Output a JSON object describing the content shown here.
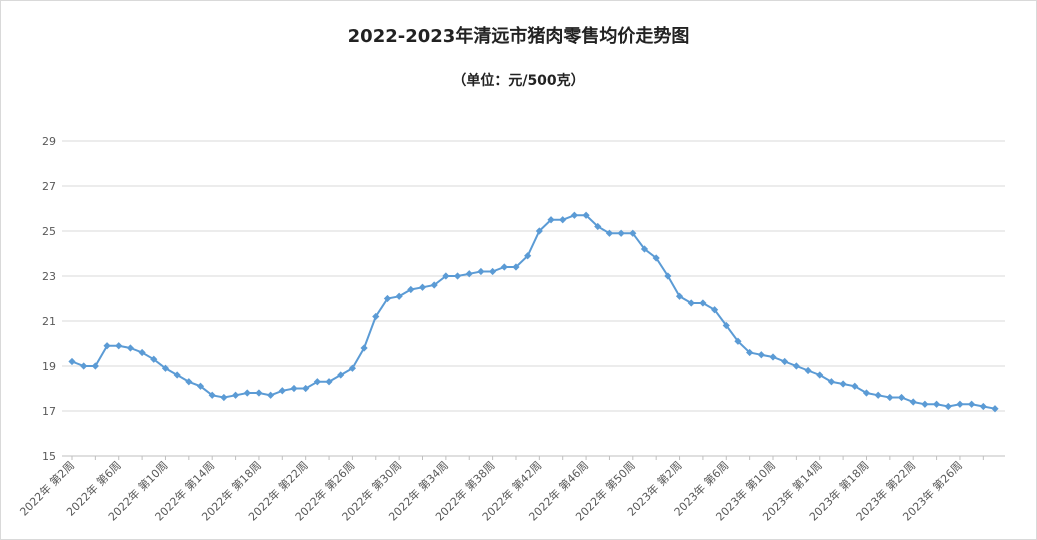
{
  "chart_data": {
    "type": "line",
    "title": "2022-2023年清远市猪肉零售均价走势图",
    "subtitle": "（单位：元/500克）",
    "xlabel": "",
    "ylabel": "",
    "ylim": [
      15,
      29
    ],
    "yticks": [
      15,
      17,
      19,
      21,
      23,
      25,
      27,
      29
    ],
    "grid": true,
    "legend": "none",
    "line_color": "#5b9bd5",
    "x_tick_labels": [
      "2022年 第2周",
      "2022年 第6周",
      "2022年 第10周",
      "2022年 第14周",
      "2022年 第18周",
      "2022年 第22周",
      "2022年 第26周",
      "2022年 第30周",
      "2022年 第34周",
      "2022年 第38周",
      "2022年 第42周",
      "2022年 第46周",
      "2022年 第50周",
      "2023年 第2周",
      "2023年 第6周",
      "2023年 第10周",
      "2023年 第14周",
      "2023年 第18周",
      "2023年 第22周",
      "2023年 第26周"
    ],
    "values": [
      19.2,
      19.0,
      19.0,
      19.9,
      19.9,
      19.8,
      19.6,
      19.3,
      18.9,
      18.6,
      18.3,
      18.1,
      17.7,
      17.6,
      17.7,
      17.8,
      17.8,
      17.7,
      17.9,
      18.0,
      18.0,
      18.3,
      18.3,
      18.6,
      18.9,
      19.8,
      21.2,
      22.0,
      22.1,
      22.4,
      22.5,
      22.6,
      23.0,
      23.0,
      23.1,
      23.2,
      23.2,
      23.4,
      23.4,
      23.9,
      25.0,
      25.5,
      25.5,
      25.7,
      25.7,
      25.2,
      24.9,
      24.9,
      24.9,
      24.2,
      23.8,
      23.0,
      22.1,
      21.8,
      21.8,
      21.5,
      20.8,
      20.1,
      19.6,
      19.5,
      19.4,
      19.2,
      19.0,
      18.8,
      18.6,
      18.3,
      18.2,
      18.1,
      17.8,
      17.7,
      17.6,
      17.6,
      17.4,
      17.3,
      17.3,
      17.2,
      17.3,
      17.3,
      17.2,
      17.1
    ]
  }
}
